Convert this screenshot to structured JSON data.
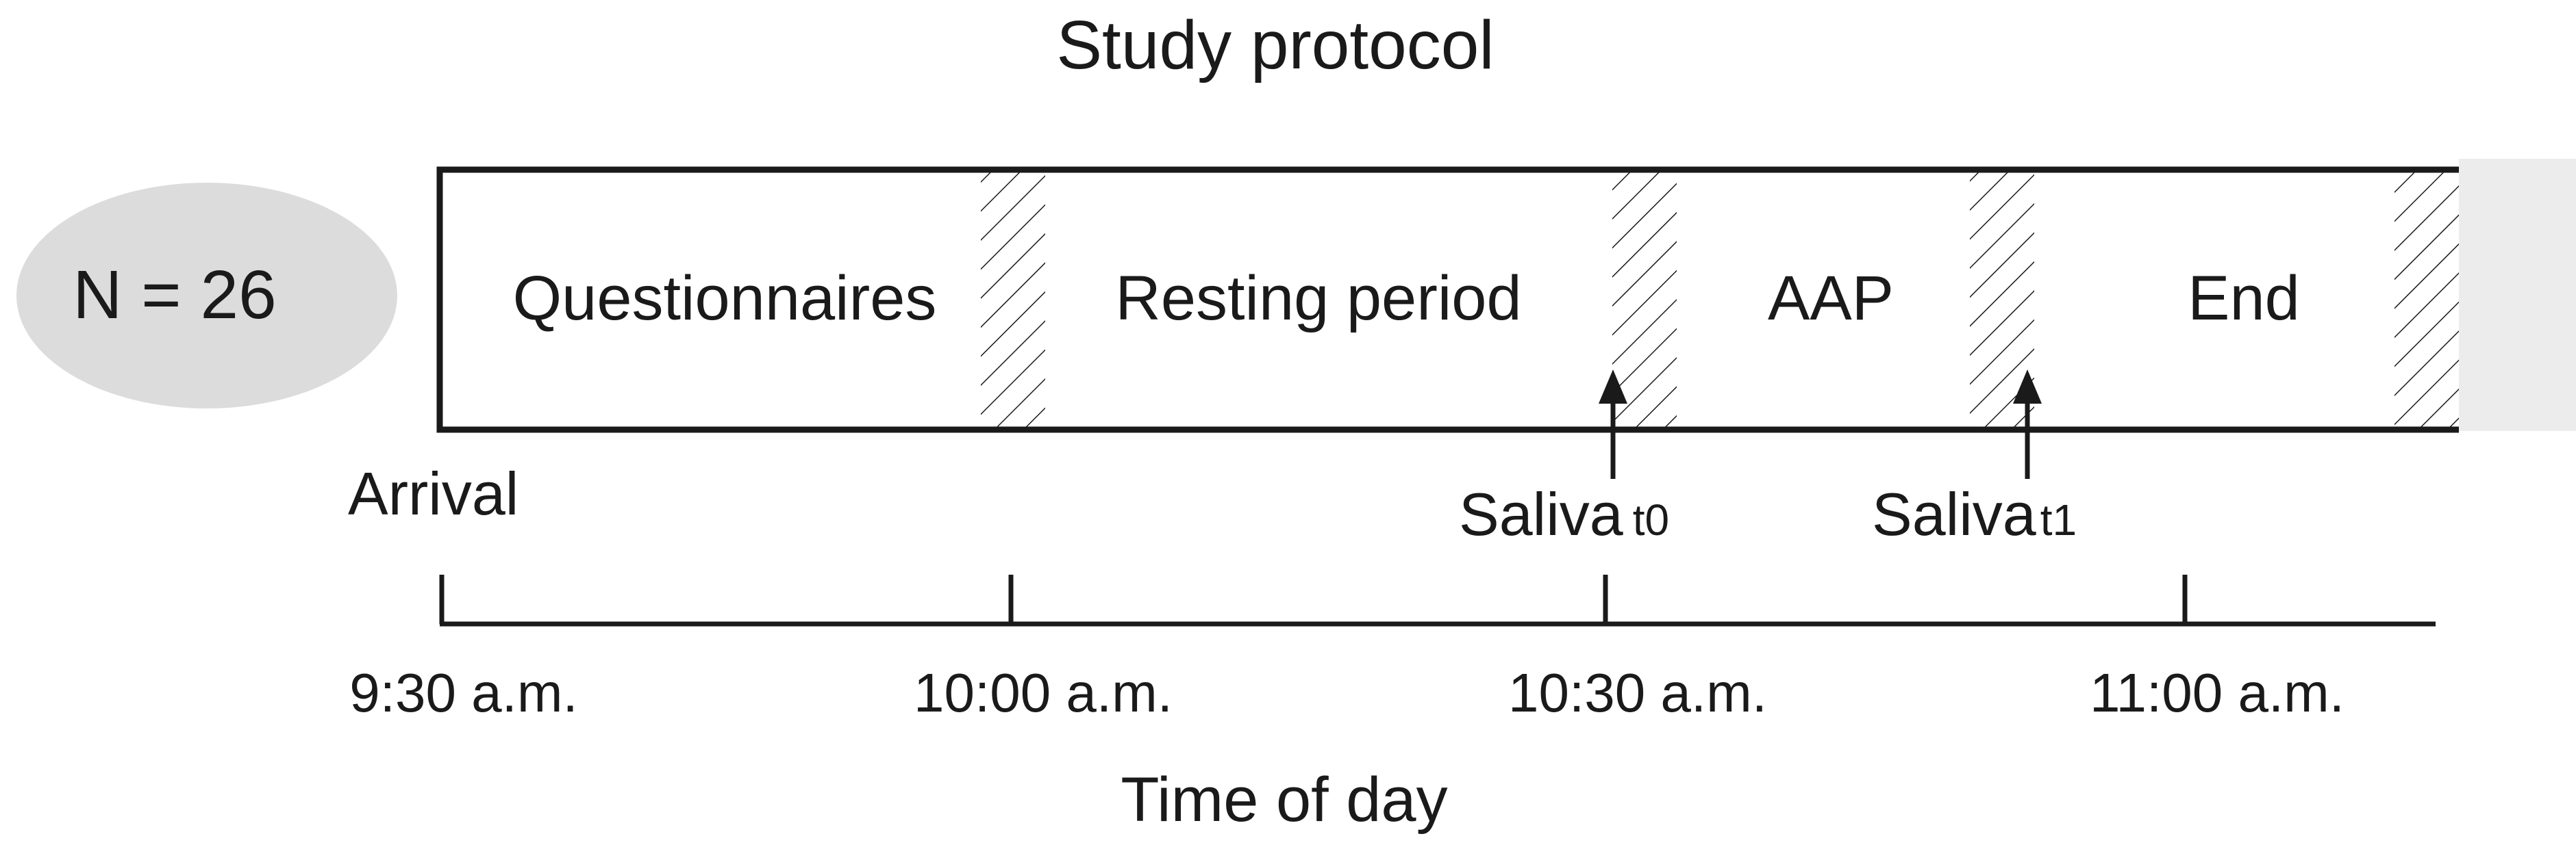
{
  "title": "Study protocol",
  "sample": {
    "label": "N = 26"
  },
  "phases": [
    {
      "label": "Questionnaires"
    },
    {
      "label": "Resting period"
    },
    {
      "label": "AAP"
    },
    {
      "label": "End"
    }
  ],
  "arrival_label": "Arrival",
  "saliva": [
    {
      "label": "Saliva",
      "sub": "t0"
    },
    {
      "label": "Saliva",
      "sub": "t1"
    }
  ],
  "timeline": {
    "ticks": [
      {
        "label": "9:30 a.m."
      },
      {
        "label": "10:00 a.m."
      },
      {
        "label": "10:30 a.m."
      },
      {
        "label": "11:00 a.m."
      }
    ],
    "axis_label": "Time of day"
  },
  "colors": {
    "ellipse_fill": "#dcdcdc",
    "stroke": "#1a1a1a",
    "edge_fade": "#ececec"
  }
}
